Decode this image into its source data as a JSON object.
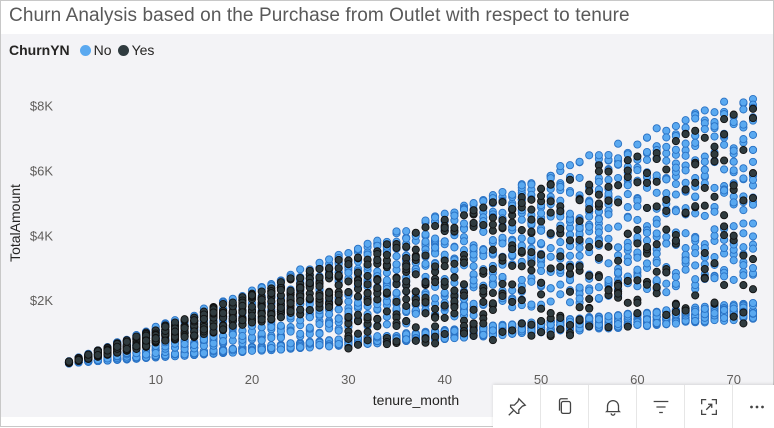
{
  "title": "Churn Analysis based on the Purchase from Outlet with respect to tenure",
  "legend": {
    "title": "ChurnYN",
    "items": [
      {
        "label": "No",
        "color": "#5aa9f0"
      },
      {
        "label": "Yes",
        "color": "#2f3b3f"
      }
    ]
  },
  "chart_data": {
    "type": "scatter",
    "title": "Churn Analysis based on the Purchase from Outlet with respect to tenure",
    "xlabel": "tenure_month",
    "ylabel": "TotalAmount",
    "xlim": [
      1,
      72
    ],
    "ylim": [
      0,
      8700
    ],
    "x_ticks": [
      10,
      20,
      30,
      40,
      50,
      60,
      70
    ],
    "y_ticks": [
      2000,
      4000,
      6000,
      8000
    ],
    "y_tick_labels": [
      "$2K",
      "$4K",
      "$6K",
      "$8K"
    ],
    "grid": false,
    "legend_position": "top-left",
    "series": [
      {
        "name": "No",
        "color": "#5aa9f0",
        "stroke": "#2a72c4",
        "description_of_distribution": "dense band of points for every tenure month from 1 to 72; lower cluster near $0.3K–$2K and upper wedge up to ~tenure*$118",
        "points_per_month": 40,
        "low_band_max_per_month": 27,
        "high_band_max_per_month": 118
      },
      {
        "name": "Yes",
        "color": "#2f3b3f",
        "stroke": "#111111",
        "points_per_month_early": 18,
        "points_per_month_late": 6,
        "high_band_max_per_month": 112
      }
    ]
  },
  "toolbar": {
    "buttons": [
      {
        "name": "pin-icon"
      },
      {
        "name": "copy-icon"
      },
      {
        "name": "bell-icon"
      },
      {
        "name": "filter-icon"
      },
      {
        "name": "focus-mode-icon"
      },
      {
        "name": "more-options-icon"
      }
    ]
  }
}
